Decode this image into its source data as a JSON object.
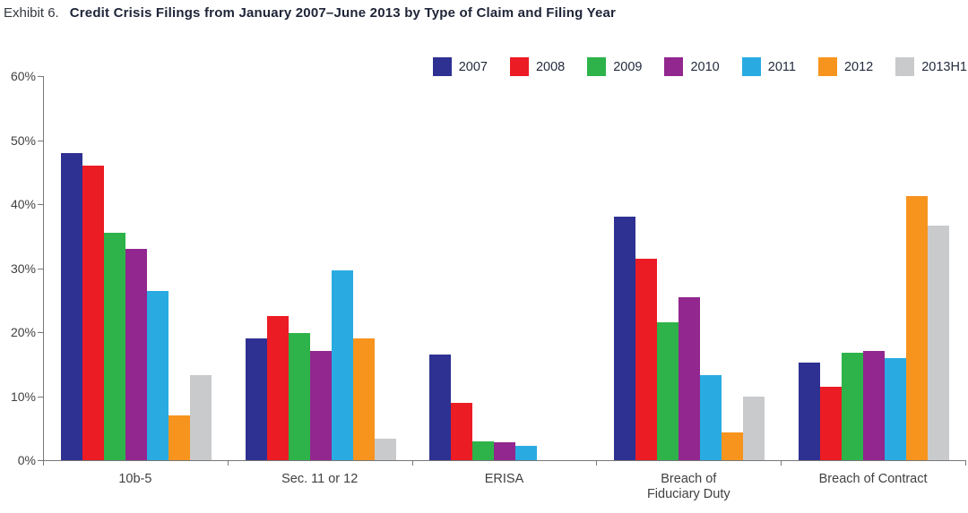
{
  "header": {
    "exhibit_label": "Exhibit 6.",
    "title": "Credit Crisis Filings from January 2007–June 2013 by Type of Claim and Filing Year"
  },
  "axis": {
    "y_tick_labels": [
      "60%",
      "50%",
      "40%",
      "30%",
      "20%",
      "10%",
      "0%"
    ],
    "axis_color": "#77787b"
  },
  "chart_data": {
    "type": "bar",
    "title": "Credit Crisis Filings from January 2007–June 2013 by Type of Claim and Filing Year",
    "categories": [
      "10b-5",
      "Sec. 11 or 12",
      "ERISA",
      "Breach of\nFiduciary Duty",
      "Breach of Contract"
    ],
    "series": [
      {
        "name": "2007",
        "color": "#2e3192",
        "values": [
          48,
          19,
          16.5,
          38,
          15.2
        ]
      },
      {
        "name": "2008",
        "color": "#ec1c24",
        "values": [
          46,
          22.5,
          9,
          31.5,
          11.5
        ]
      },
      {
        "name": "2009",
        "color": "#2db34a",
        "values": [
          35.5,
          19.8,
          2.9,
          21.5,
          16.8
        ]
      },
      {
        "name": "2010",
        "color": "#92278f",
        "values": [
          33,
          17,
          2.8,
          25.5,
          17
        ]
      },
      {
        "name": "2011",
        "color": "#29abe2",
        "values": [
          26.5,
          29.7,
          2.2,
          13.3,
          16
        ]
      },
      {
        "name": "2012",
        "color": "#f7941e",
        "values": [
          7,
          19,
          0,
          4.4,
          41.2
        ]
      },
      {
        "name": "2013H1",
        "color": "#c9cacc",
        "values": [
          13.3,
          3.3,
          0,
          10,
          36.7
        ]
      }
    ],
    "xlabel": "",
    "ylabel": "",
    "ylim": [
      0,
      60
    ],
    "y_tick_step": 10,
    "grid": false,
    "legend_position": "top-right",
    "unit": "percent"
  }
}
